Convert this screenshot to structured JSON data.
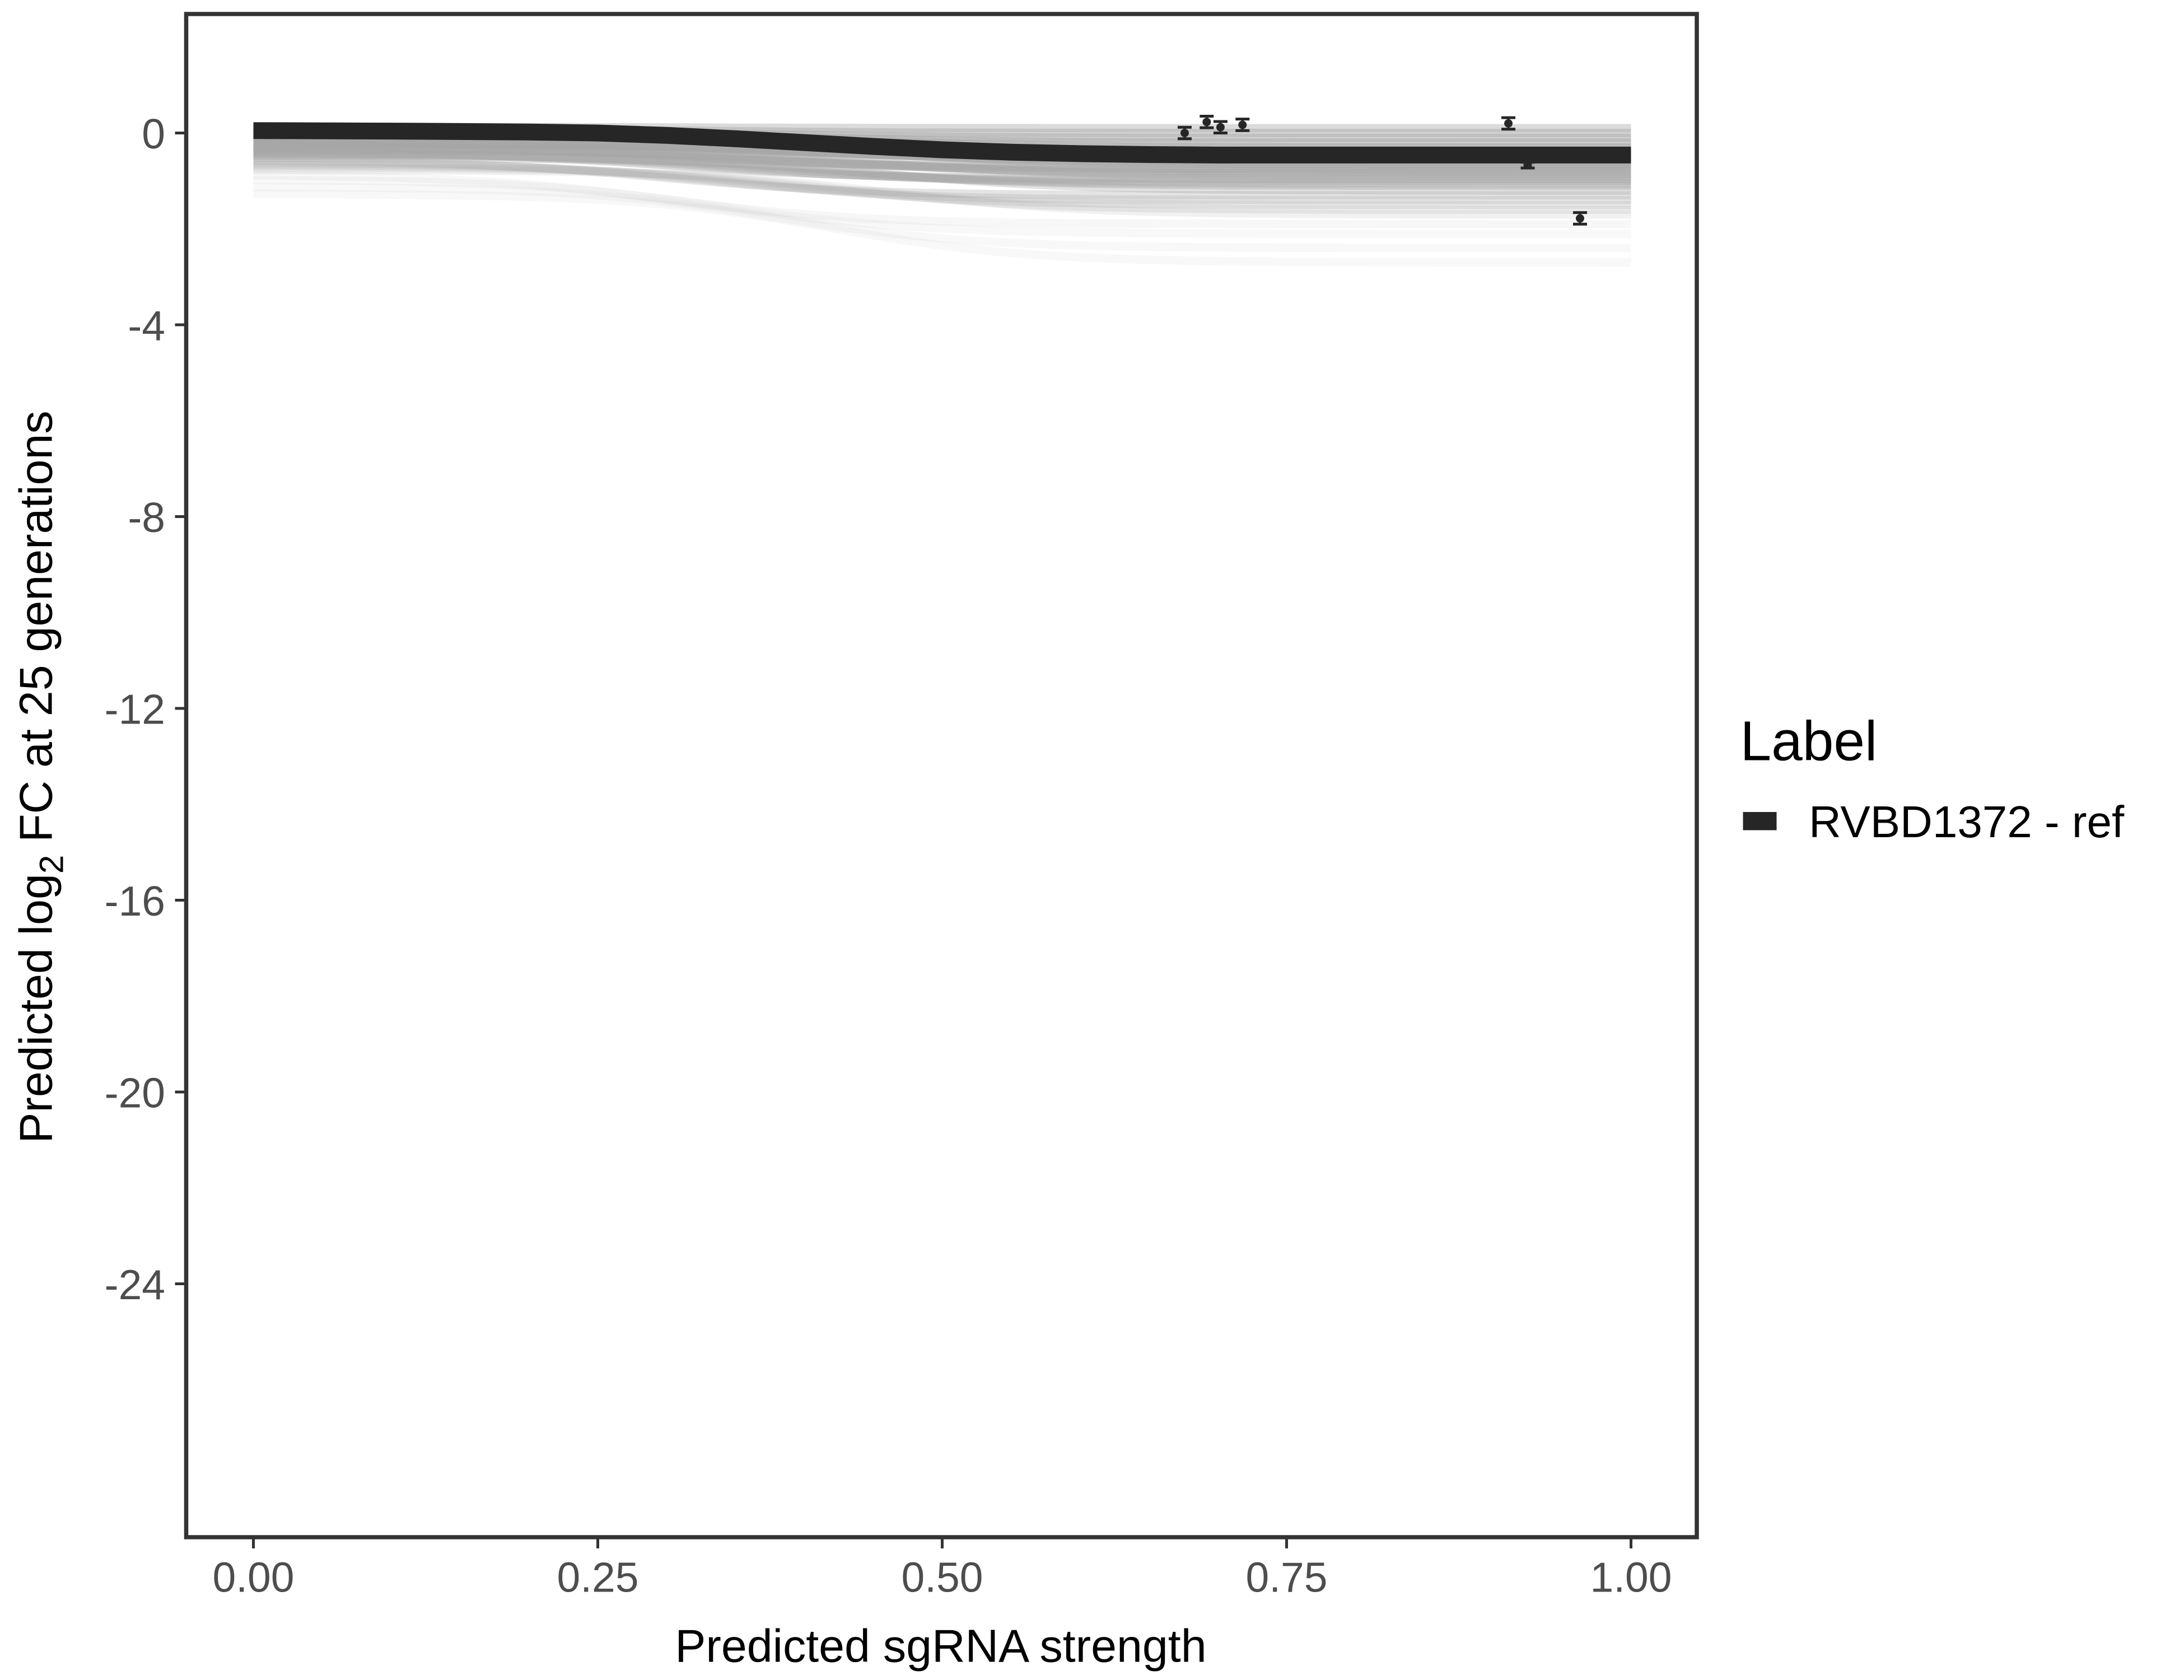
{
  "chart_data": {
    "type": "line",
    "xlabel": "Predicted sgRNA strength",
    "ylabel_prefix": "Predicted  log",
    "ylabel_sub": "2",
    "ylabel_suffix": " FC at 25 generations",
    "xlim": [
      -0.05,
      1.05
    ],
    "ylim": [
      -29.5,
      2.5
    ],
    "x_ticks": [
      0,
      0.25,
      0.5,
      0.75,
      1
    ],
    "x_tick_labels": [
      "0.00",
      "0.25",
      "0.50",
      "0.75",
      "1.00"
    ],
    "y_ticks": [
      0,
      -4,
      -8,
      -12,
      -16,
      -20,
      -24
    ],
    "y_tick_labels": [
      "0",
      "-4",
      "-8",
      "-12",
      "-16",
      "-20",
      "-24"
    ],
    "grid": false,
    "legend": {
      "title": "Label",
      "position": "right",
      "entries": [
        {
          "name": "RVBD1372 - ref",
          "color": "#262626"
        }
      ]
    },
    "main_curve": {
      "name": "RVBD1372 - ref",
      "x": [
        0,
        0.1,
        0.2,
        0.25,
        0.3,
        0.35,
        0.4,
        0.45,
        0.5,
        0.55,
        0.6,
        0.65,
        0.7,
        0.8,
        0.9,
        1.0
      ],
      "y": [
        0.05,
        0.04,
        0.02,
        0.0,
        -0.05,
        -0.12,
        -0.2,
        -0.28,
        -0.35,
        -0.4,
        -0.43,
        -0.45,
        -0.46,
        -0.46,
        -0.46,
        -0.46
      ]
    },
    "posterior_draw_plateaus": [
      0.1,
      0.0,
      -0.1,
      -0.2,
      -0.3,
      -0.4,
      -0.5,
      -0.55,
      -0.6,
      -0.65,
      -0.7,
      -0.75,
      -0.8,
      -0.85,
      -0.9,
      -0.95,
      -1.0,
      -1.05,
      -1.1,
      -1.2,
      -1.3,
      -1.4,
      -1.5,
      -1.6,
      -1.7,
      -1.9,
      -2.1,
      -2.4,
      -2.7
    ],
    "points": [
      {
        "x": 0.676,
        "y": 0.0,
        "err": 0.12
      },
      {
        "x": 0.692,
        "y": 0.23,
        "err": 0.12
      },
      {
        "x": 0.702,
        "y": 0.12,
        "err": 0.12
      },
      {
        "x": 0.718,
        "y": 0.17,
        "err": 0.12
      },
      {
        "x": 0.911,
        "y": 0.2,
        "err": 0.12
      },
      {
        "x": 0.925,
        "y": -0.67,
        "err": 0.06
      },
      {
        "x": 0.963,
        "y": -1.78,
        "err": 0.12
      }
    ],
    "colors": {
      "main": "#262626",
      "draws": "#a6a6a6",
      "points": "#262626",
      "frame": "#333333"
    }
  }
}
